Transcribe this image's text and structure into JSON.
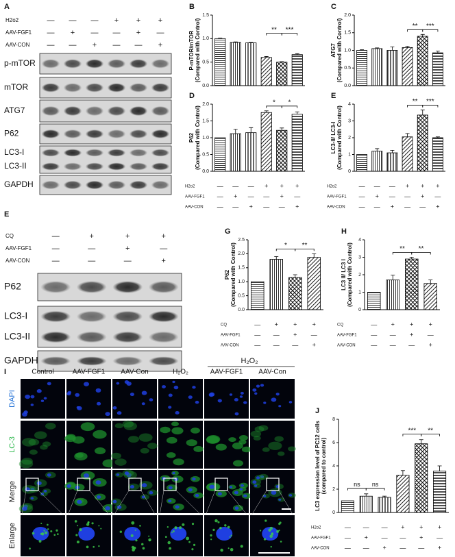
{
  "blots": [
    {
      "label": "A",
      "conditions": {
        "names": [
          "H2o2",
          "AAV-FGF1",
          "AAV-CON"
        ],
        "signs": [
          [
            "—",
            "—",
            "—",
            "+",
            "+",
            "+"
          ],
          [
            "—",
            "+",
            "—",
            "—",
            "+",
            "—"
          ],
          [
            "—",
            "—",
            "+",
            "—",
            "—",
            "+"
          ]
        ]
      },
      "rows": [
        [
          "p-mTOR"
        ],
        [
          "mTOR"
        ],
        [
          "ATG7"
        ],
        [
          "P62"
        ],
        [
          "LC3-I",
          "LC3-II"
        ],
        [
          "GAPDH"
        ]
      ]
    },
    {
      "label": "E",
      "conditions": {
        "names": [
          "CQ",
          "AAV-FGF1",
          "AAV-CON"
        ],
        "signs": [
          [
            "—",
            "+",
            "+",
            "+"
          ],
          [
            "—",
            "—",
            "+",
            "—"
          ],
          [
            "—",
            "—",
            "—",
            "+"
          ]
        ]
      },
      "rows": [
        [
          "P62"
        ],
        [
          "LC3-I",
          "LC3-II"
        ],
        [
          "GAPDH"
        ]
      ]
    }
  ],
  "micrographs": {
    "label": "I",
    "columns": [
      "Control",
      "AAV-FGF1",
      "AAV-Con",
      "H₂O₂",
      "AAV-FGF1",
      "AAV-Con"
    ],
    "group": "H₂O₂",
    "rows": [
      "DAPI",
      "LC-3",
      "Merge",
      "Enlarge"
    ]
  },
  "chart_data": [
    {
      "label": "B",
      "type": "bar",
      "ylabel": [
        "P-mTOR/mTOR",
        "(Compared with Control)"
      ],
      "values": [
        1.0,
        0.92,
        0.91,
        0.6,
        0.5,
        0.66
      ],
      "errors": [
        0.01,
        0.01,
        0.01,
        0.02,
        0.01,
        0.02
      ],
      "ylim": [
        0,
        1.5
      ],
      "yticks": [
        {
          "value": 0,
          "label": "0.0"
        },
        0.5,
        {
          "value": 1,
          "label": "1.0"
        },
        1.5
      ],
      "significance": [
        null,
        null,
        null,
        "**",
        "***"
      ]
    },
    {
      "label": "C",
      "type": "bar",
      "ylabel": [
        "ATG7",
        "(Compared with Control)"
      ],
      "values": [
        1.0,
        1.05,
        1.0,
        1.08,
        1.4,
        0.93
      ],
      "errors": [
        0.02,
        0.02,
        0.1,
        0.03,
        0.05,
        0.05
      ],
      "ylim": [
        0,
        2
      ],
      "yticks": [
        {
          "value": 0,
          "label": "0.0"
        },
        0.5,
        {
          "value": 1,
          "label": "1.0"
        },
        1.5,
        {
          "value": 2,
          "label": "2.0"
        }
      ],
      "significance": [
        null,
        null,
        null,
        "**",
        "***"
      ]
    },
    {
      "label": "D",
      "type": "bar",
      "ylabel": [
        "P62",
        "(Compared with Control)"
      ],
      "values": [
        1.0,
        1.12,
        1.15,
        1.75,
        1.22,
        1.7
      ],
      "errors": [
        0,
        0.13,
        0.15,
        0.05,
        0.07,
        0.07
      ],
      "ylim": [
        0,
        2
      ],
      "yticks": [
        {
          "value": 0,
          "label": "0.0"
        },
        0.5,
        {
          "value": 1,
          "label": "1.0"
        },
        1.5,
        {
          "value": 2,
          "label": "2.0"
        }
      ],
      "significance": [
        null,
        null,
        null,
        "*",
        "*"
      ],
      "conditions": {
        "names": [
          "H2o2",
          "AAV-FGF1",
          "AAV-CON"
        ],
        "signs": [
          [
            "—",
            "—",
            "—",
            "+",
            "+",
            "+"
          ],
          [
            "—",
            "+",
            "—",
            "—",
            "+",
            "—"
          ],
          [
            "—",
            "—",
            "+",
            "—",
            "—",
            "+"
          ]
        ]
      }
    },
    {
      "label": "E",
      "type": "bar",
      "ylabel": [
        "LC3-II/ LC3-I",
        "(Compared with Control)"
      ],
      "values": [
        1.0,
        1.2,
        1.1,
        2.05,
        3.35,
        2.0
      ],
      "errors": [
        0,
        0.15,
        0.15,
        0.2,
        0.3,
        0.05
      ],
      "ylim": [
        0,
        4
      ],
      "yticks": [
        0,
        1,
        2,
        3,
        4
      ],
      "significance": [
        null,
        null,
        null,
        "**",
        "***"
      ],
      "conditions": {
        "names": [
          "H2o2",
          "AAV-FGF1",
          "AAV-CON"
        ],
        "signs": [
          [
            "—",
            "—",
            "—",
            "+",
            "+",
            "+"
          ],
          [
            "—",
            "+",
            "—",
            "—",
            "+",
            "—"
          ],
          [
            "—",
            "—",
            "+",
            "—",
            "—",
            "+"
          ]
        ]
      }
    },
    {
      "label": "G",
      "type": "bar",
      "ylabel": [
        "P62",
        "(Compared with Control)"
      ],
      "values": [
        1.0,
        1.8,
        1.15,
        1.87
      ],
      "errors": [
        0,
        0.1,
        0.1,
        0.13
      ],
      "ylim": [
        0,
        2.5
      ],
      "yticks": [
        {
          "value": 0,
          "label": "0.0"
        },
        0.5,
        {
          "value": 1,
          "label": "1.0"
        },
        1.5,
        {
          "value": 2,
          "label": "2.0"
        },
        2.5
      ],
      "significance": [
        null,
        "*",
        "**"
      ],
      "conditions": {
        "names": [
          "CQ",
          "AAV-FGF1",
          "AAV-CON"
        ],
        "signs": [
          [
            "—",
            "+",
            "+",
            "+"
          ],
          [
            "—",
            "—",
            "+",
            "—"
          ],
          [
            "—",
            "—",
            "—",
            "+"
          ]
        ]
      }
    },
    {
      "label": "H",
      "type": "bar",
      "ylabel": [
        "LC3 II/ LC3 I",
        "(Compared with Control)"
      ],
      "values": [
        1.0,
        1.7,
        2.9,
        1.5
      ],
      "errors": [
        0,
        0.28,
        0.1,
        0.2
      ],
      "ylim": [
        0,
        4
      ],
      "yticks": [
        0,
        1,
        2,
        3,
        4
      ],
      "significance": [
        null,
        "**",
        "**"
      ],
      "conditions": {
        "names": [
          "CQ",
          "AAV-FGF1",
          "AAV-CON"
        ],
        "signs": [
          [
            "—",
            "+",
            "+",
            "+"
          ],
          [
            "—",
            "—",
            "+",
            "—"
          ],
          [
            "—",
            "—",
            "—",
            "+"
          ]
        ]
      }
    },
    {
      "label": "J",
      "type": "bar",
      "ylabel": [
        "LC3 expression level of PC12 cells",
        "(compared to control)"
      ],
      "values": [
        1.0,
        1.4,
        1.3,
        3.2,
        5.9,
        3.55
      ],
      "errors": [
        0,
        0.2,
        0.1,
        0.4,
        0.35,
        0.45
      ],
      "ylim": [
        0,
        8
      ],
      "yticks": [
        0,
        2,
        4,
        6,
        8
      ],
      "significance": [
        "ns",
        "ns",
        null,
        "***",
        "**"
      ],
      "conditions": {
        "names": [
          "H2o2",
          "AAV-FGF1",
          "AAV-CON"
        ],
        "signs": [
          [
            "—",
            "—",
            "—",
            "+",
            "+",
            "+"
          ],
          [
            "—",
            "+",
            "—",
            "—",
            "+",
            "—"
          ],
          [
            "—",
            "—",
            "+",
            "—",
            "—",
            "+"
          ]
        ]
      }
    }
  ]
}
